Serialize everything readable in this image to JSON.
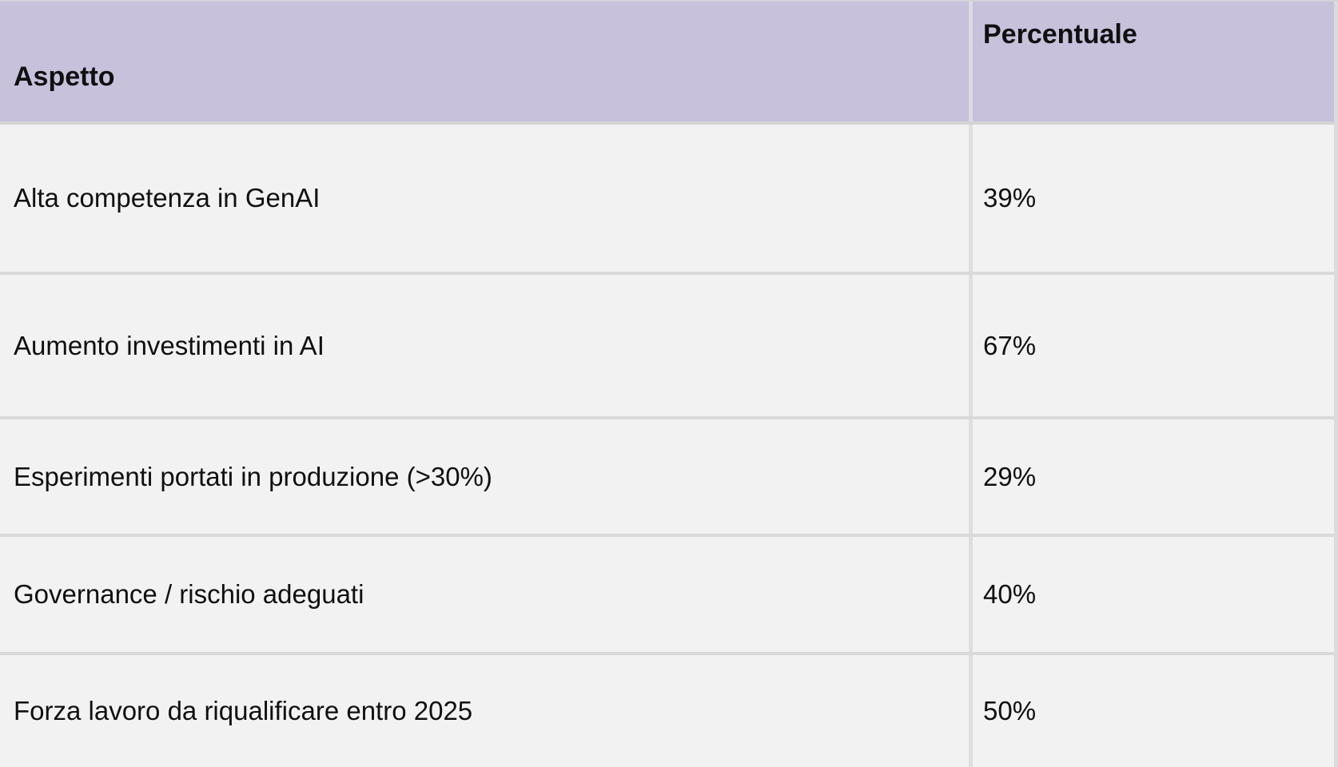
{
  "chart_data": {
    "type": "table",
    "title": "",
    "columns": [
      "Aspetto",
      "Percentuale"
    ],
    "rows": [
      {
        "aspetto": "Alta competenza in GenAI",
        "percentuale": "39%",
        "value": 39
      },
      {
        "aspetto": "Aumento investimenti in AI",
        "percentuale": "67%",
        "value": 67
      },
      {
        "aspetto": "Esperimenti portati in produzione (>30%)",
        "percentuale": "29%",
        "value": 29
      },
      {
        "aspetto": "Governance / rischio adeguati",
        "percentuale": "40%",
        "value": 40
      },
      {
        "aspetto": "Forza lavoro da riqualificare entro 2025",
        "percentuale": "50%",
        "value": 50
      }
    ]
  },
  "table": {
    "header": {
      "aspetto": "Aspetto",
      "percentuale": "Percentuale"
    },
    "rows": [
      {
        "aspetto": "Alta competenza in GenAI",
        "percentuale": "39%"
      },
      {
        "aspetto": "Aumento investimenti in AI",
        "percentuale": "67%"
      },
      {
        "aspetto": "Esperimenti portati in produzione (>30%)",
        "percentuale": "29%"
      },
      {
        "aspetto": "Governance / rischio adeguati",
        "percentuale": "40%"
      },
      {
        "aspetto": "Forza lavoro da riqualificare entro 2025",
        "percentuale": "50%"
      }
    ]
  },
  "colors": {
    "header_bg": "#c7c1db",
    "row_bg": "#f2f2f2",
    "divider": "#d9d9d9",
    "text": "#101010"
  }
}
